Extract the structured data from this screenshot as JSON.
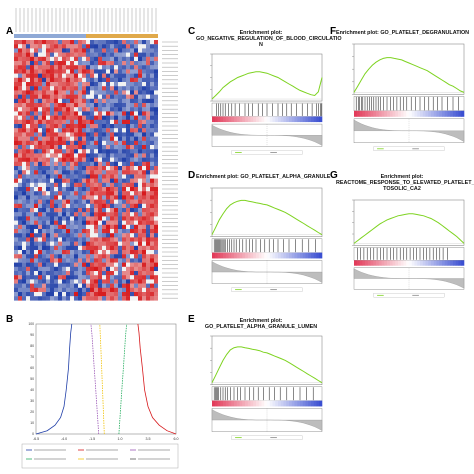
{
  "figure": {
    "panels": {
      "A": {
        "letter": "A"
      },
      "B": {
        "letter": "B"
      },
      "C": {
        "letter": "C",
        "title_line1": "Enrichment plot:",
        "title_line2": "GO_NEGATIVE_REGULATION_OF_BLOOD_CIRCULATIO",
        "title_line3": "N"
      },
      "D": {
        "letter": "D",
        "title_line1": "Enrichment plot: GO_PLATELET_ALPHA_GRANULE",
        "title_line2": ""
      },
      "E": {
        "letter": "E",
        "title_line1": "Enrichment plot:",
        "title_line2": "GO_PLATELET_ALPHA_GRANULE_LUMEN"
      },
      "F": {
        "letter": "F",
        "title_line1": "Enrichment plot: GO_PLATELET_DEGRANULATION",
        "title_line2": ""
      },
      "G": {
        "letter": "G",
        "title_line1": "Enrichment plot:",
        "title_line2": "REACTOME_RESPONSE_TO_ELEVATED_PLATELET_CY",
        "title_line3": "TOSOLIC_CA2"
      }
    },
    "colors": {
      "heat_high": "#d7191c",
      "heat_low": "#1f3ea8",
      "heat_mid": "#f2f2f2",
      "group_bar_1": "#8fa9d6",
      "group_bar_2": "#e0a94a",
      "es_line": "#7ed321",
      "hit_lines": "#111111",
      "rank_red": "#e23b5a",
      "rank_blue": "#3b4fd1",
      "metric_fill": "#bdbdbd"
    }
  },
  "chart_data": [
    {
      "type": "line",
      "panel": "B",
      "note_visible_legend": true,
      "xticks": [
        "-6.5",
        "-4.0",
        "-1.5",
        "1.0",
        "3.5",
        "6.0"
      ],
      "yticks": [
        "0",
        "10",
        "20",
        "30",
        "40",
        "50",
        "60",
        "70",
        "80",
        "90",
        "100"
      ],
      "xlim": [
        -6.5,
        6.0
      ],
      "ylim": [
        0,
        100
      ],
      "series": [
        {
          "color": "#1f3ea8",
          "x": [
            -6.5,
            -5.5,
            -4.8,
            -4.3,
            -4.0,
            -3.8,
            -3.6,
            -3.5,
            -3.4,
            -3.3
          ],
          "y": [
            0,
            3,
            8,
            15,
            25,
            40,
            60,
            78,
            92,
            100
          ]
        },
        {
          "color": "#d7191c",
          "x": [
            6.0,
            5.2,
            4.5,
            3.9,
            3.5,
            3.2,
            3.0,
            2.8,
            2.7,
            2.6
          ],
          "y": [
            0,
            3,
            8,
            15,
            25,
            40,
            60,
            78,
            92,
            100
          ]
        },
        {
          "color": "#9b59b6",
          "x": [
            -0.9,
            -1.0,
            -1.1,
            -1.2,
            -1.3,
            -1.4,
            -1.5,
            -1.6
          ],
          "y": [
            0,
            15,
            30,
            45,
            60,
            75,
            90,
            100
          ]
        },
        {
          "color": "#27ae60",
          "x": [
            0.9,
            1.0,
            1.1,
            1.2,
            1.3,
            1.4,
            1.5,
            1.6
          ],
          "y": [
            0,
            15,
            30,
            45,
            60,
            75,
            90,
            100
          ]
        },
        {
          "color": "#f1c40f",
          "x": [
            -0.4,
            -0.5,
            -0.6,
            -0.7,
            -0.8
          ],
          "y": [
            0,
            25,
            50,
            75,
            100
          ]
        }
      ]
    },
    {
      "type": "line",
      "panel": "C",
      "es_y": [
        0.0,
        0.05,
        0.1,
        0.16,
        0.2,
        0.24,
        0.27,
        0.3,
        0.32,
        0.34,
        0.36,
        0.37,
        0.38,
        0.38,
        0.37,
        0.36,
        0.34,
        0.32,
        0.3,
        0.27,
        0.24,
        0.21,
        0.18,
        0.15,
        0.12,
        0.1,
        0.08,
        0.06,
        0.05,
        0.1,
        0.3
      ],
      "hits": [
        0.04,
        0.06,
        0.08,
        0.1,
        0.12,
        0.15,
        0.18,
        0.21,
        0.25,
        0.3,
        0.33,
        0.37,
        0.42,
        0.46,
        0.5,
        0.55,
        0.6,
        0.64,
        0.68,
        0.72,
        0.77,
        0.82,
        0.87,
        0.91,
        0.95,
        0.97,
        0.985,
        0.995
      ]
    },
    {
      "type": "line",
      "panel": "D",
      "es_y": [
        0.0,
        0.1,
        0.2,
        0.28,
        0.35,
        0.4,
        0.43,
        0.45,
        0.46,
        0.46,
        0.45,
        0.44,
        0.43,
        0.42,
        0.41,
        0.4,
        0.38,
        0.36,
        0.34,
        0.32,
        0.3,
        0.27,
        0.24,
        0.21,
        0.18,
        0.15,
        0.12,
        0.09,
        0.06,
        0.03,
        0.0
      ],
      "hits": [
        0.02,
        0.03,
        0.04,
        0.05,
        0.06,
        0.07,
        0.08,
        0.09,
        0.1,
        0.11,
        0.12,
        0.14,
        0.16,
        0.18,
        0.2,
        0.22,
        0.25,
        0.28,
        0.31,
        0.34,
        0.37,
        0.4,
        0.44,
        0.48,
        0.52,
        0.56,
        0.6,
        0.65,
        0.7,
        0.76,
        0.82,
        0.88,
        0.94
      ]
    },
    {
      "type": "line",
      "panel": "E",
      "es_y": [
        0.0,
        0.1,
        0.2,
        0.3,
        0.38,
        0.44,
        0.47,
        0.48,
        0.48,
        0.47,
        0.46,
        0.45,
        0.44,
        0.43,
        0.41,
        0.4,
        0.38,
        0.36,
        0.34,
        0.32,
        0.3,
        0.27,
        0.24,
        0.21,
        0.18,
        0.15,
        0.12,
        0.09,
        0.06,
        0.03,
        0.0
      ],
      "hits": [
        0.02,
        0.03,
        0.04,
        0.05,
        0.06,
        0.08,
        0.1,
        0.12,
        0.14,
        0.17,
        0.2,
        0.23,
        0.26,
        0.3,
        0.34,
        0.38,
        0.42,
        0.47,
        0.52,
        0.57,
        0.62,
        0.68,
        0.74,
        0.8,
        0.86,
        0.92
      ]
    },
    {
      "type": "line",
      "panel": "F",
      "es_y": [
        0.0,
        0.08,
        0.16,
        0.24,
        0.3,
        0.35,
        0.39,
        0.42,
        0.44,
        0.45,
        0.45,
        0.44,
        0.43,
        0.42,
        0.4,
        0.38,
        0.36,
        0.34,
        0.32,
        0.3,
        0.28,
        0.25,
        0.22,
        0.19,
        0.16,
        0.13,
        0.1,
        0.08,
        0.05,
        0.02,
        0.0
      ],
      "hits": [
        0.02,
        0.04,
        0.05,
        0.07,
        0.08,
        0.1,
        0.12,
        0.14,
        0.16,
        0.18,
        0.2,
        0.22,
        0.24,
        0.27,
        0.3,
        0.33,
        0.36,
        0.39,
        0.42,
        0.45,
        0.48,
        0.52,
        0.56,
        0.6,
        0.64,
        0.68,
        0.72,
        0.76,
        0.8,
        0.85,
        0.9,
        0.95
      ]
    },
    {
      "type": "line",
      "panel": "G",
      "es_y": [
        0.0,
        0.04,
        0.08,
        0.12,
        0.16,
        0.2,
        0.24,
        0.28,
        0.31,
        0.34,
        0.36,
        0.38,
        0.4,
        0.41,
        0.42,
        0.43,
        0.43,
        0.42,
        0.41,
        0.4,
        0.38,
        0.36,
        0.33,
        0.3,
        0.26,
        0.22,
        0.18,
        0.14,
        0.1,
        0.05,
        0.0
      ],
      "hits": [
        0.03,
        0.06,
        0.09,
        0.12,
        0.15,
        0.18,
        0.21,
        0.24,
        0.27,
        0.3,
        0.33,
        0.36,
        0.39,
        0.42,
        0.45,
        0.48,
        0.51,
        0.54,
        0.57,
        0.6,
        0.63,
        0.66,
        0.69,
        0.72,
        0.75,
        0.78,
        0.81,
        0.85
      ]
    }
  ]
}
